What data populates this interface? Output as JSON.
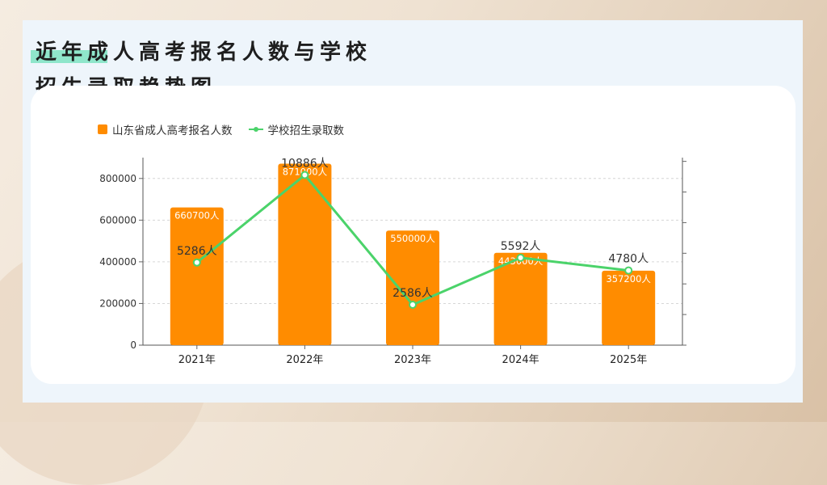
{
  "title": {
    "line1": "近年成人高考报名人数与学校",
    "line2": "招生录取趋势图"
  },
  "colors": {
    "bar": "#ff8c00",
    "line": "#4bd36a",
    "panel": "#eef5fb",
    "accent": "#7ee3c2"
  },
  "chart_data": {
    "type": "bar",
    "title": "近年成人高考报名人数与学校招生录取趋势图",
    "categories": [
      "2021年",
      "2022年",
      "2023年",
      "2024年",
      "2025年"
    ],
    "series": [
      {
        "name": "山东省成人高考报名人数",
        "type": "bar",
        "axis": "left",
        "values": [
          660700,
          871000,
          550000,
          443000,
          357200
        ],
        "labels": [
          "660700人",
          "871000人",
          "550000人",
          "443000人",
          "357200人"
        ]
      },
      {
        "name": "学校招生录取数",
        "type": "line",
        "axis": "right",
        "values": [
          5286,
          10886,
          2586,
          5592,
          4780
        ],
        "labels": [
          "5286人",
          "10886人",
          "2586人",
          "5592人",
          "4780人"
        ]
      }
    ],
    "y_left": {
      "ylim": [
        0,
        900000
      ],
      "ticks": [
        0,
        200000,
        400000,
        600000,
        800000
      ],
      "tick_labels": [
        "0",
        "200000",
        "400000",
        "600000",
        "800000"
      ]
    },
    "y_right": {
      "ylim": [
        0,
        12000
      ],
      "tick_labels_visible": false
    },
    "grid": true,
    "legend_position": "top-left"
  }
}
